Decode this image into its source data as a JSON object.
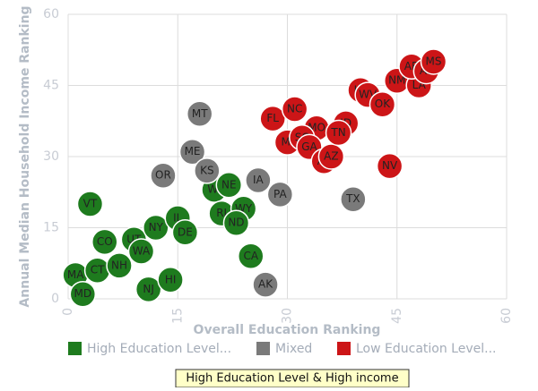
{
  "chart_data": {
    "type": "scatter",
    "x_label": "Overall Education Ranking",
    "y_label": "Annual Median Household Income Ranking",
    "xlim": [
      0,
      60
    ],
    "xticks": [
      0,
      15,
      30,
      45,
      60
    ],
    "ylim": [
      0,
      60
    ],
    "yticks": [
      0,
      15,
      30,
      45,
      60
    ],
    "grid": true,
    "legend": "bottom",
    "tooltip": "High Education Level & High income",
    "series": [
      {
        "name": "High Education Level...",
        "color": "#1e7b1e",
        "x": [
          3,
          1,
          2,
          4,
          5,
          7,
          9,
          10,
          11,
          12,
          14,
          15,
          16,
          20,
          22,
          21,
          24,
          23,
          25
        ],
        "values": [
          20,
          5,
          1,
          6,
          12,
          7,
          12.5,
          10,
          2,
          15,
          4,
          17,
          14,
          23,
          24,
          18,
          19,
          16,
          9
        ],
        "labels": [
          "VT",
          "MA",
          "MD",
          "CT",
          "CO",
          "NH",
          "UT",
          "WA",
          "NJ",
          "NY",
          "HI",
          "IL",
          "DE",
          "WI",
          "NE",
          "RI",
          "WY",
          "ND",
          "CA"
        ]
      },
      {
        "name": "Mixed",
        "color": "#7a7a7a",
        "x": [
          18,
          17,
          19,
          13,
          26,
          29,
          27,
          39
        ],
        "values": [
          39,
          31,
          27,
          26,
          25,
          22,
          3,
          21
        ],
        "labels": [
          "MT",
          "ME",
          "KS",
          "OR",
          "IA",
          "PA",
          "AK",
          "TX"
        ]
      },
      {
        "name": "Low Education Level...",
        "color": "#cc1517",
        "x": [
          28,
          31,
          34,
          38,
          30,
          32,
          33,
          35,
          36,
          37,
          44,
          40,
          41,
          43,
          45,
          48,
          47,
          49,
          50
        ],
        "values": [
          38,
          40,
          36,
          37,
          33,
          34,
          32,
          29,
          30,
          35,
          28,
          44,
          43,
          41,
          46,
          45,
          49,
          48,
          50
        ],
        "labels": [
          "FL",
          "NC",
          "MO",
          "ID",
          "MI",
          "SC",
          "GA",
          "AL",
          "AZ",
          "TN",
          "NV",
          "KY",
          "WV",
          "OK",
          "NM",
          "LA",
          "AR",
          "AL",
          "MS"
        ]
      }
    ]
  }
}
